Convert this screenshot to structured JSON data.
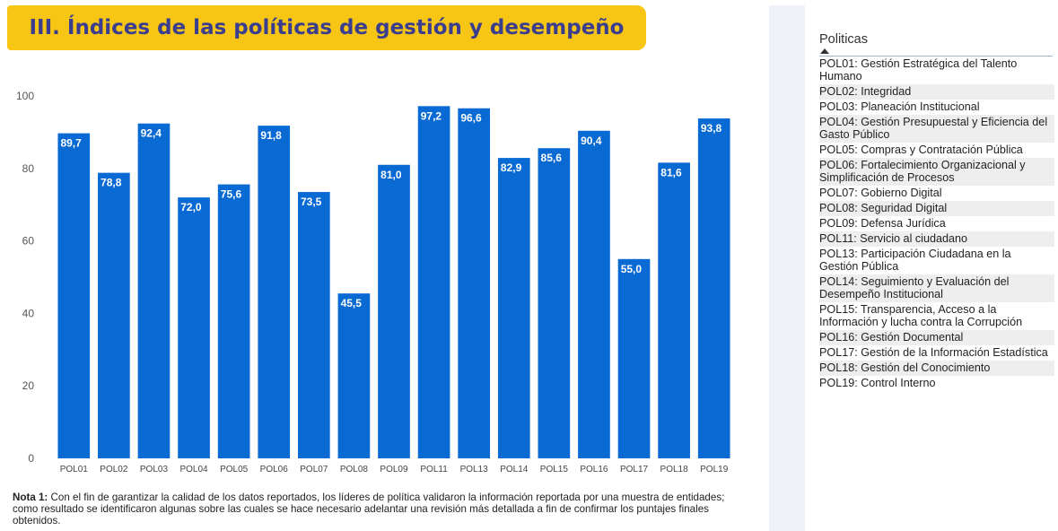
{
  "header": {
    "title": "III. Índices de las políticas de gestión y desempeño"
  },
  "chart_data": {
    "type": "bar",
    "categories": [
      "POL01",
      "POL02",
      "POL03",
      "POL04",
      "POL05",
      "POL06",
      "POL07",
      "POL08",
      "POL09",
      "POL11",
      "POL13",
      "POL14",
      "POL15",
      "POL16",
      "POL17",
      "POL18",
      "POL19"
    ],
    "values": [
      89.7,
      78.8,
      92.4,
      72.0,
      75.6,
      91.8,
      73.5,
      45.5,
      81.0,
      97.2,
      96.6,
      82.9,
      85.6,
      90.4,
      55.0,
      81.6,
      93.8
    ],
    "value_labels": [
      "89,7",
      "78,8",
      "92,4",
      "72,0",
      "75,6",
      "91,8",
      "73,5",
      "45,5",
      "81,0",
      "97,2",
      "96,6",
      "82,9",
      "85,6",
      "90,4",
      "55,0",
      "81,6",
      "93,8"
    ],
    "y_ticks": [
      "0",
      "20",
      "40",
      "60",
      "80",
      "100"
    ],
    "ylim": [
      0,
      100
    ],
    "grid": false,
    "bar_color": "#0a6ad4",
    "title": "",
    "xlabel": "",
    "ylabel": ""
  },
  "note": {
    "label": "Nota 1:",
    "text": " Con el fin de garantizar la calidad de los datos reportados, los líderes de política validaron la información reportada por una muestra de entidades; como resultado se identificaron algunas sobre las cuales se hace necesario adelantar una revisión más detallada a fin de confirmar los puntajes finales obtenidos."
  },
  "legend": {
    "title": "Politicas",
    "sort_icon": "sort-ascending-icon",
    "items": [
      "POL01: Gestión Estratégica del Talento Humano",
      "POL02: Integridad",
      "POL03: Planeación Institucional",
      "POL04: Gestión Presupuestal y Eficiencia del Gasto Público",
      "POL05: Compras y Contratación Pública",
      "POL06: Fortalecimiento Organizacional y Simplificación de Procesos",
      "POL07: Gobierno Digital",
      "POL08: Seguridad Digital",
      "POL09: Defensa Jurídica",
      "POL11: Servicio al ciudadano",
      "POL13: Participación Ciudadana en la Gestión Pública",
      "POL14: Seguimiento y Evaluación del Desempeño Institucional",
      "POL15: Transparencia, Acceso a la Información y lucha contra la Corrupción",
      "POL16: Gestión Documental",
      "POL17: Gestión de la Información Estadística",
      "POL18: Gestión del Conocimiento",
      "POL19: Control Interno"
    ]
  }
}
